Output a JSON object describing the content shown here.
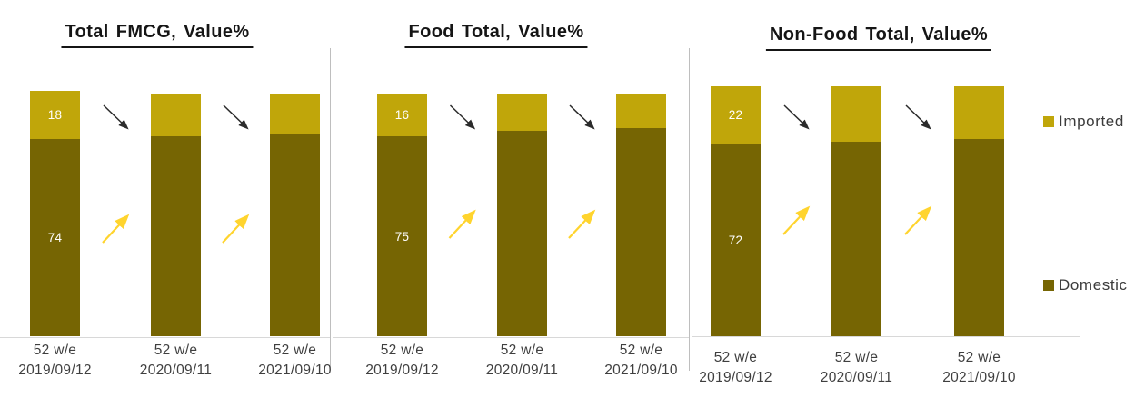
{
  "page": {
    "background": "#FFFFFF"
  },
  "colors": {
    "imported": "#C0A60A",
    "domestic": "#766503",
    "segment_label": "#FFFFFF",
    "imported_trend_arrow": "#2B2B2B",
    "domestic_trend_arrow": "#FFD42E",
    "axis_line": "#D8D8D8",
    "divider": "#BEBEBE"
  },
  "legend": {
    "position": "right",
    "items": [
      {
        "label": "Imported",
        "color": "#C0A60A"
      },
      {
        "label": "Domestic",
        "color": "#766503"
      }
    ]
  },
  "chart_data": [
    {
      "type": "bar",
      "stacked": true,
      "units": "percent of value",
      "title": "Total FMCG, Value%",
      "categories": [
        [
          "52 w/e",
          "2019/09/12"
        ],
        [
          "52 w/e",
          "2020/09/11"
        ],
        [
          "52 w/e",
          "2021/09/10"
        ]
      ],
      "series": [
        {
          "name": "Domestic",
          "values": [
            74,
            75,
            76
          ],
          "labels_shown": [
            "74",
            null,
            null
          ]
        },
        {
          "name": "Imported",
          "values": [
            18,
            16,
            15
          ],
          "labels_shown": [
            "18",
            null,
            null
          ]
        }
      ],
      "annotations": [
        {
          "type": "trend-arrow",
          "series": "Imported",
          "direction": "down"
        },
        {
          "type": "trend-arrow",
          "series": "Domestic",
          "direction": "up"
        }
      ],
      "value_axis_visible": false,
      "grid": false
    },
    {
      "type": "bar",
      "stacked": true,
      "units": "percent of value",
      "title": "Food Total, Value%",
      "categories": [
        [
          "52 w/e",
          "2019/09/12"
        ],
        [
          "52 w/e",
          "2020/09/11"
        ],
        [
          "52 w/e",
          "2021/09/10"
        ]
      ],
      "series": [
        {
          "name": "Domestic",
          "values": [
            75,
            77,
            78
          ],
          "labels_shown": [
            "75",
            null,
            null
          ]
        },
        {
          "name": "Imported",
          "values": [
            16,
            14,
            13
          ],
          "labels_shown": [
            "16",
            null,
            null
          ]
        }
      ],
      "annotations": [
        {
          "type": "trend-arrow",
          "series": "Imported",
          "direction": "down"
        },
        {
          "type": "trend-arrow",
          "series": "Domestic",
          "direction": "up"
        }
      ],
      "value_axis_visible": false,
      "grid": false
    },
    {
      "type": "bar",
      "stacked": true,
      "units": "percent of value",
      "title": "Non-Food Total, Value%",
      "categories": [
        [
          "52 w/e",
          "2019/09/12"
        ],
        [
          "52 w/e",
          "2020/09/11"
        ],
        [
          "52 w/e",
          "2021/09/10"
        ]
      ],
      "series": [
        {
          "name": "Domestic",
          "values": [
            72,
            73,
            74
          ],
          "labels_shown": [
            "72",
            null,
            null
          ]
        },
        {
          "name": "Imported",
          "values": [
            22,
            21,
            20
          ],
          "labels_shown": [
            "22",
            null,
            null
          ]
        }
      ],
      "annotations": [
        {
          "type": "trend-arrow",
          "series": "Imported",
          "direction": "down"
        },
        {
          "type": "trend-arrow",
          "series": "Domestic",
          "direction": "up"
        }
      ],
      "value_axis_visible": false,
      "grid": false
    }
  ]
}
